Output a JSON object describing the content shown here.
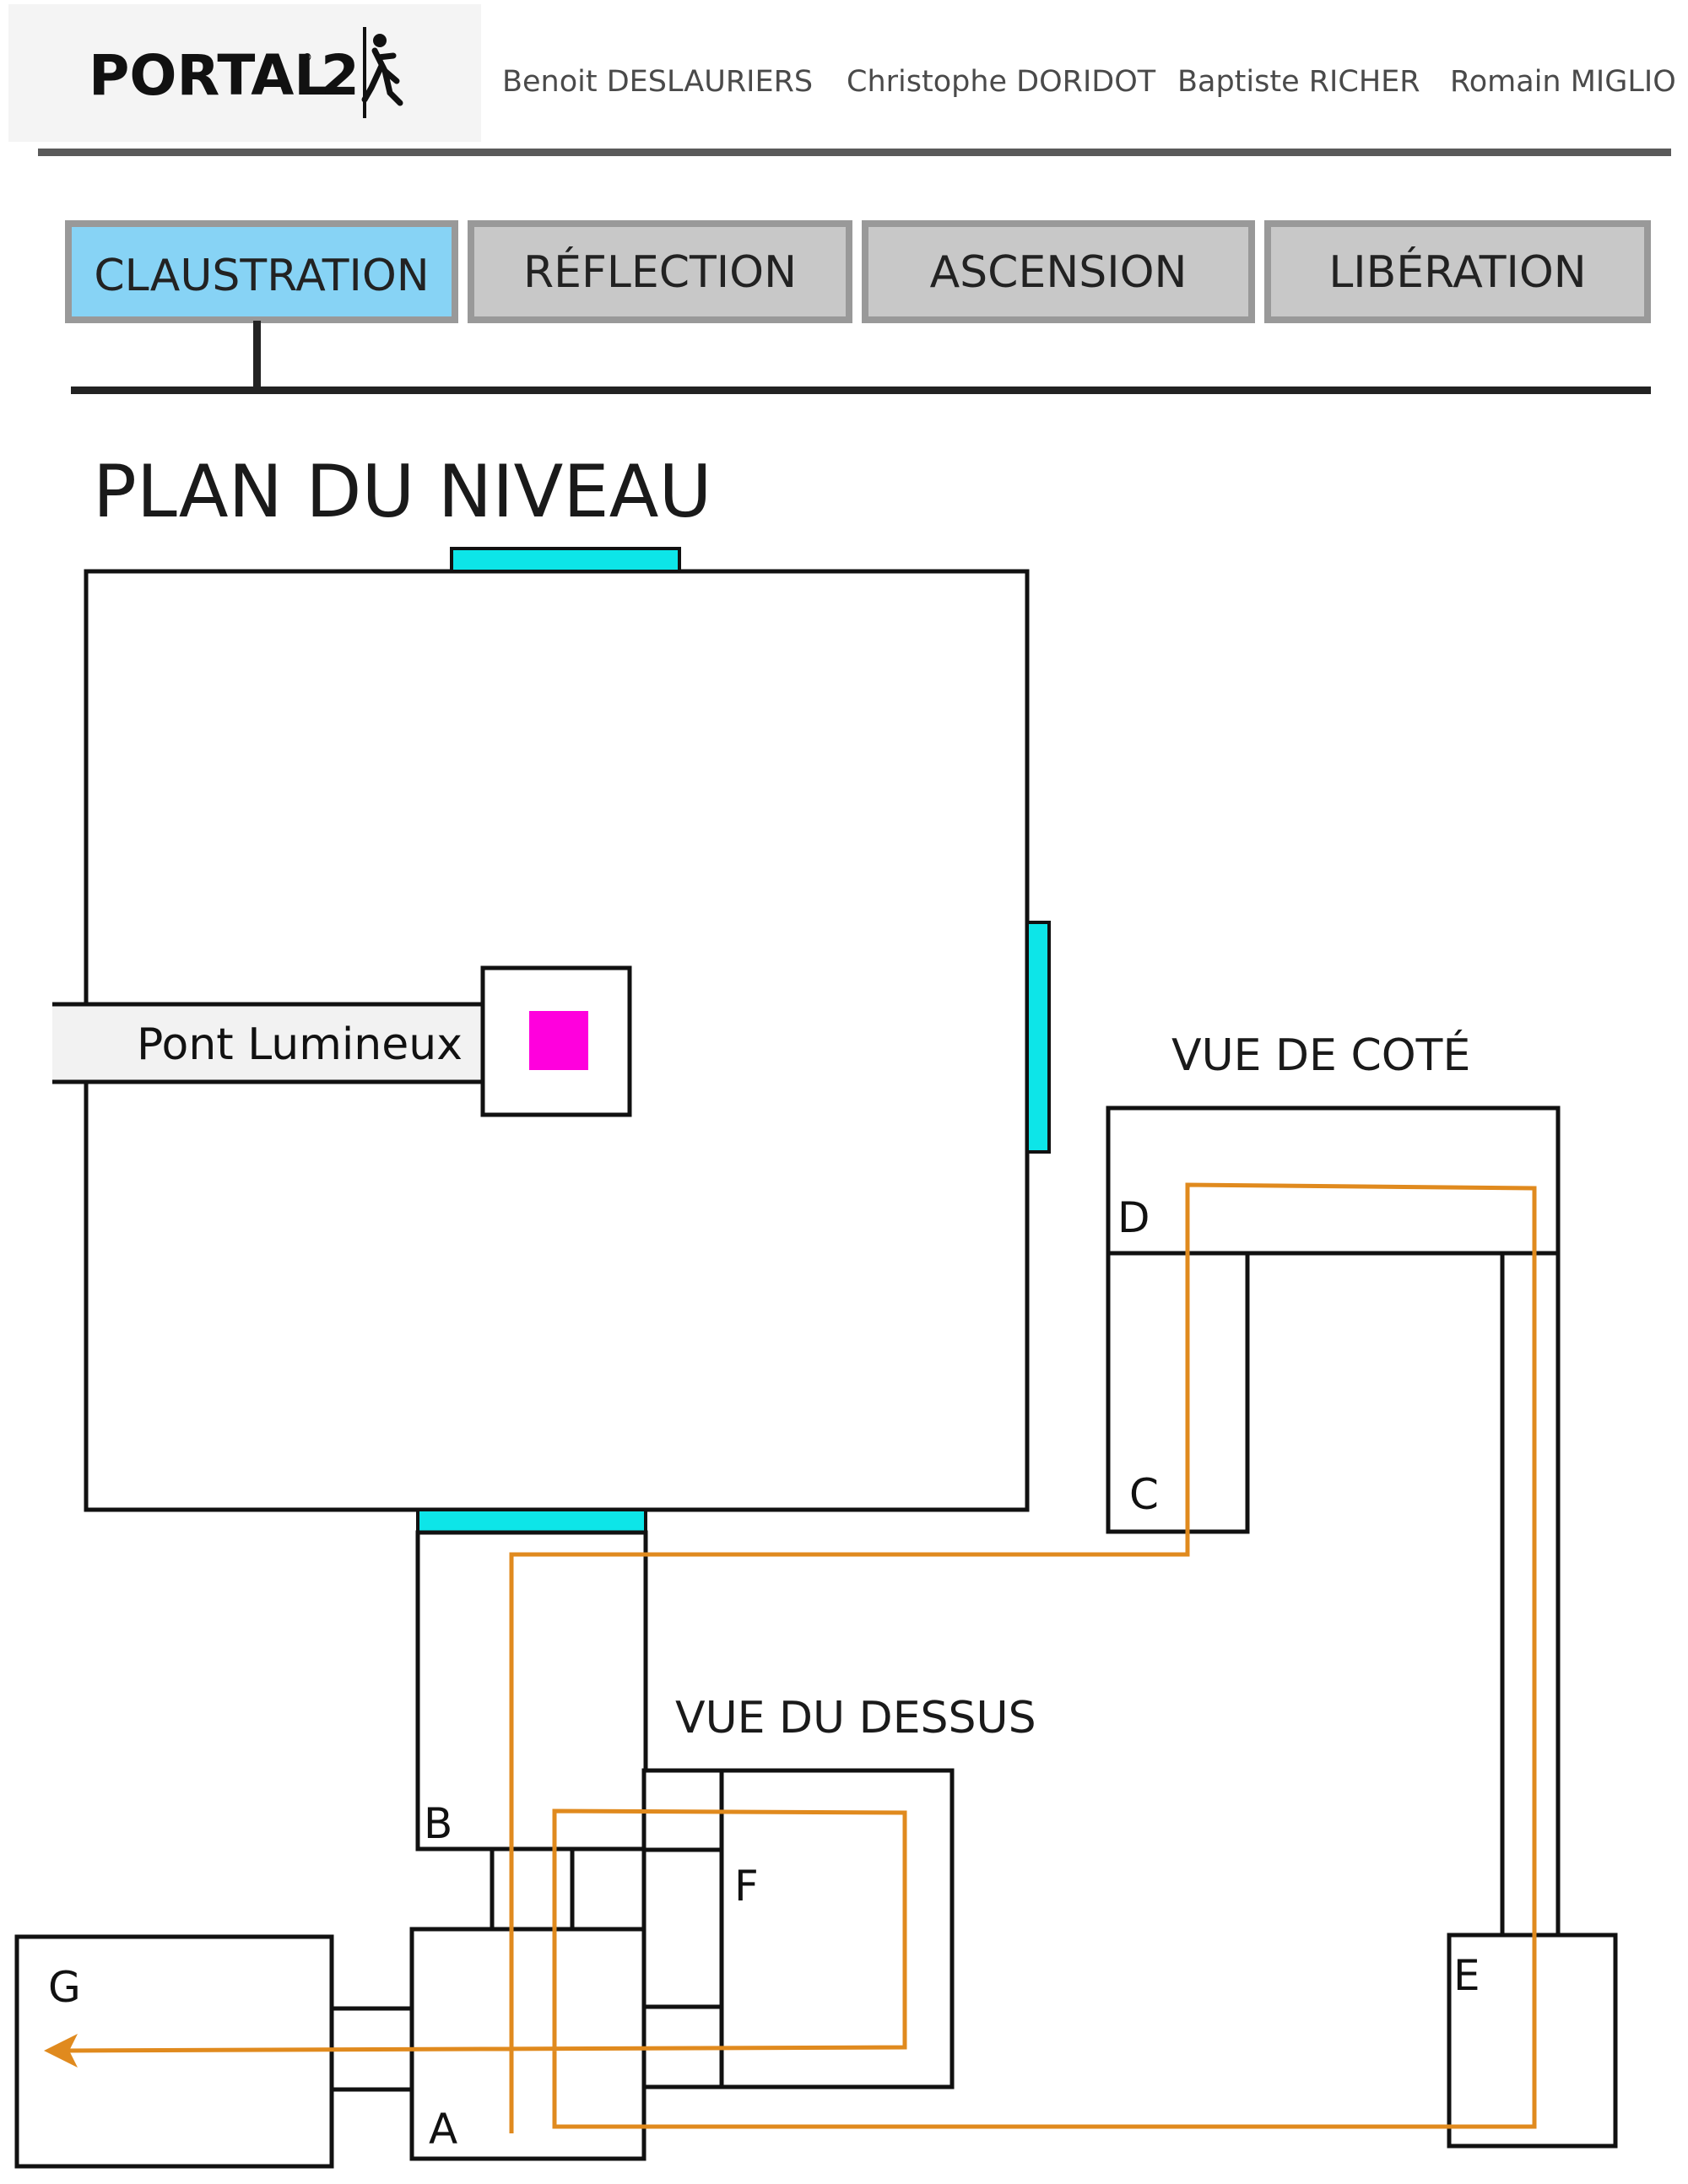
{
  "header": {
    "logo_text": "PORTAL",
    "logo_number": "2",
    "logo_mark": "®",
    "authors": [
      "Benoit DESLAURIERS",
      "Christophe DORIDOT",
      "Baptiste RICHER",
      "Romain MIGLIO"
    ]
  },
  "tabs": [
    {
      "label": "CLAUSTRATION",
      "active": true
    },
    {
      "label": "RÉFLECTION",
      "active": false
    },
    {
      "label": "ASCENSION",
      "active": false
    },
    {
      "label": "LIBÉRATION",
      "active": false
    }
  ],
  "page_title": "PLAN DU NIVEAU",
  "diagram": {
    "bridge_label": "Pont Lumineux",
    "side_view_title": "VUE DE COTÉ",
    "top_view_title": "VUE DU DESSUS",
    "room_labels": {
      "A": "A",
      "B": "B",
      "C": "C",
      "D": "D",
      "E": "E",
      "F": "F",
      "G": "G"
    }
  },
  "colors": {
    "active_tab": "#87d3f5",
    "inactive_tab": "#c8c8c8",
    "tab_border": "#999999",
    "portal_panel": "#0de5e8",
    "cube": "#ff00dd",
    "path": "#e08a1e",
    "wall": "#111111",
    "header_rule": "#5a5a5a"
  }
}
